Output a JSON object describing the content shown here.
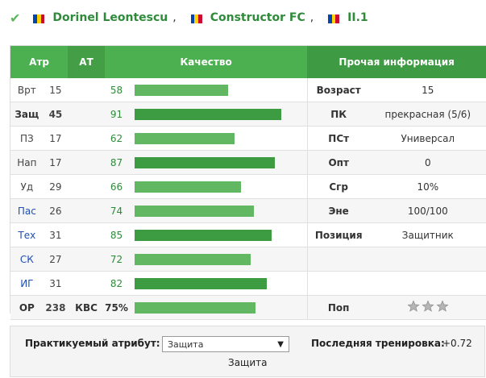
{
  "header": {
    "player_name": "Dorinel Leontescu",
    "separator": ",",
    "team": "Constructor FC",
    "league": "II.1",
    "flag_colors": [
      "#0046AE",
      "#FFD200",
      "#CC092F"
    ]
  },
  "table": {
    "headers": {
      "atr": "Атр",
      "at": "АТ",
      "quality": "Качество",
      "other": "Прочая информация"
    },
    "rows": [
      {
        "atr": "Врт",
        "val": "15",
        "at": "",
        "q": "58",
        "info_label": "Возраст",
        "info_val": "15"
      },
      {
        "atr": "Защ",
        "val": "45",
        "at": "",
        "q": "91",
        "info_label": "ПК",
        "info_val": "прекрасная (5/6)"
      },
      {
        "atr": "ПЗ",
        "val": "17",
        "at": "",
        "q": "62",
        "info_label": "ПСт",
        "info_val": "Универсал"
      },
      {
        "atr": "Нап",
        "val": "17",
        "at": "",
        "q": "87",
        "info_label": "Опт",
        "info_val": "0"
      },
      {
        "atr": "Уд",
        "val": "29",
        "at": "",
        "q": "66",
        "info_label": "Сгр",
        "info_val": "10%"
      },
      {
        "atr": "Пас",
        "val": "26",
        "at": "",
        "q": "74",
        "info_label": "Эне",
        "info_val": "100/100"
      },
      {
        "atr": "Тех",
        "val": "31",
        "at": "",
        "q": "85",
        "info_label": "Позиция",
        "info_val": "Защитник"
      },
      {
        "atr": "СК",
        "val": "27",
        "at": "",
        "q": "72",
        "info_label": "",
        "info_val": ""
      },
      {
        "atr": "ИГ",
        "val": "31",
        "at": "",
        "q": "82",
        "info_label": "",
        "info_val": ""
      }
    ],
    "summary": {
      "atr": "ОР",
      "val": "238",
      "at": "КВС",
      "q": "75%",
      "info_label": "Поп"
    }
  },
  "practice": {
    "label": "Практикуемый атрибут:",
    "selected": "Защита",
    "value_text": "Защита"
  },
  "training": {
    "label": "Последняя тренировка:",
    "value": "+0.72"
  },
  "colors": {
    "accent_green": "#4caf50",
    "bar_green": "#62b862",
    "link_blue": "#1f4fb5"
  }
}
